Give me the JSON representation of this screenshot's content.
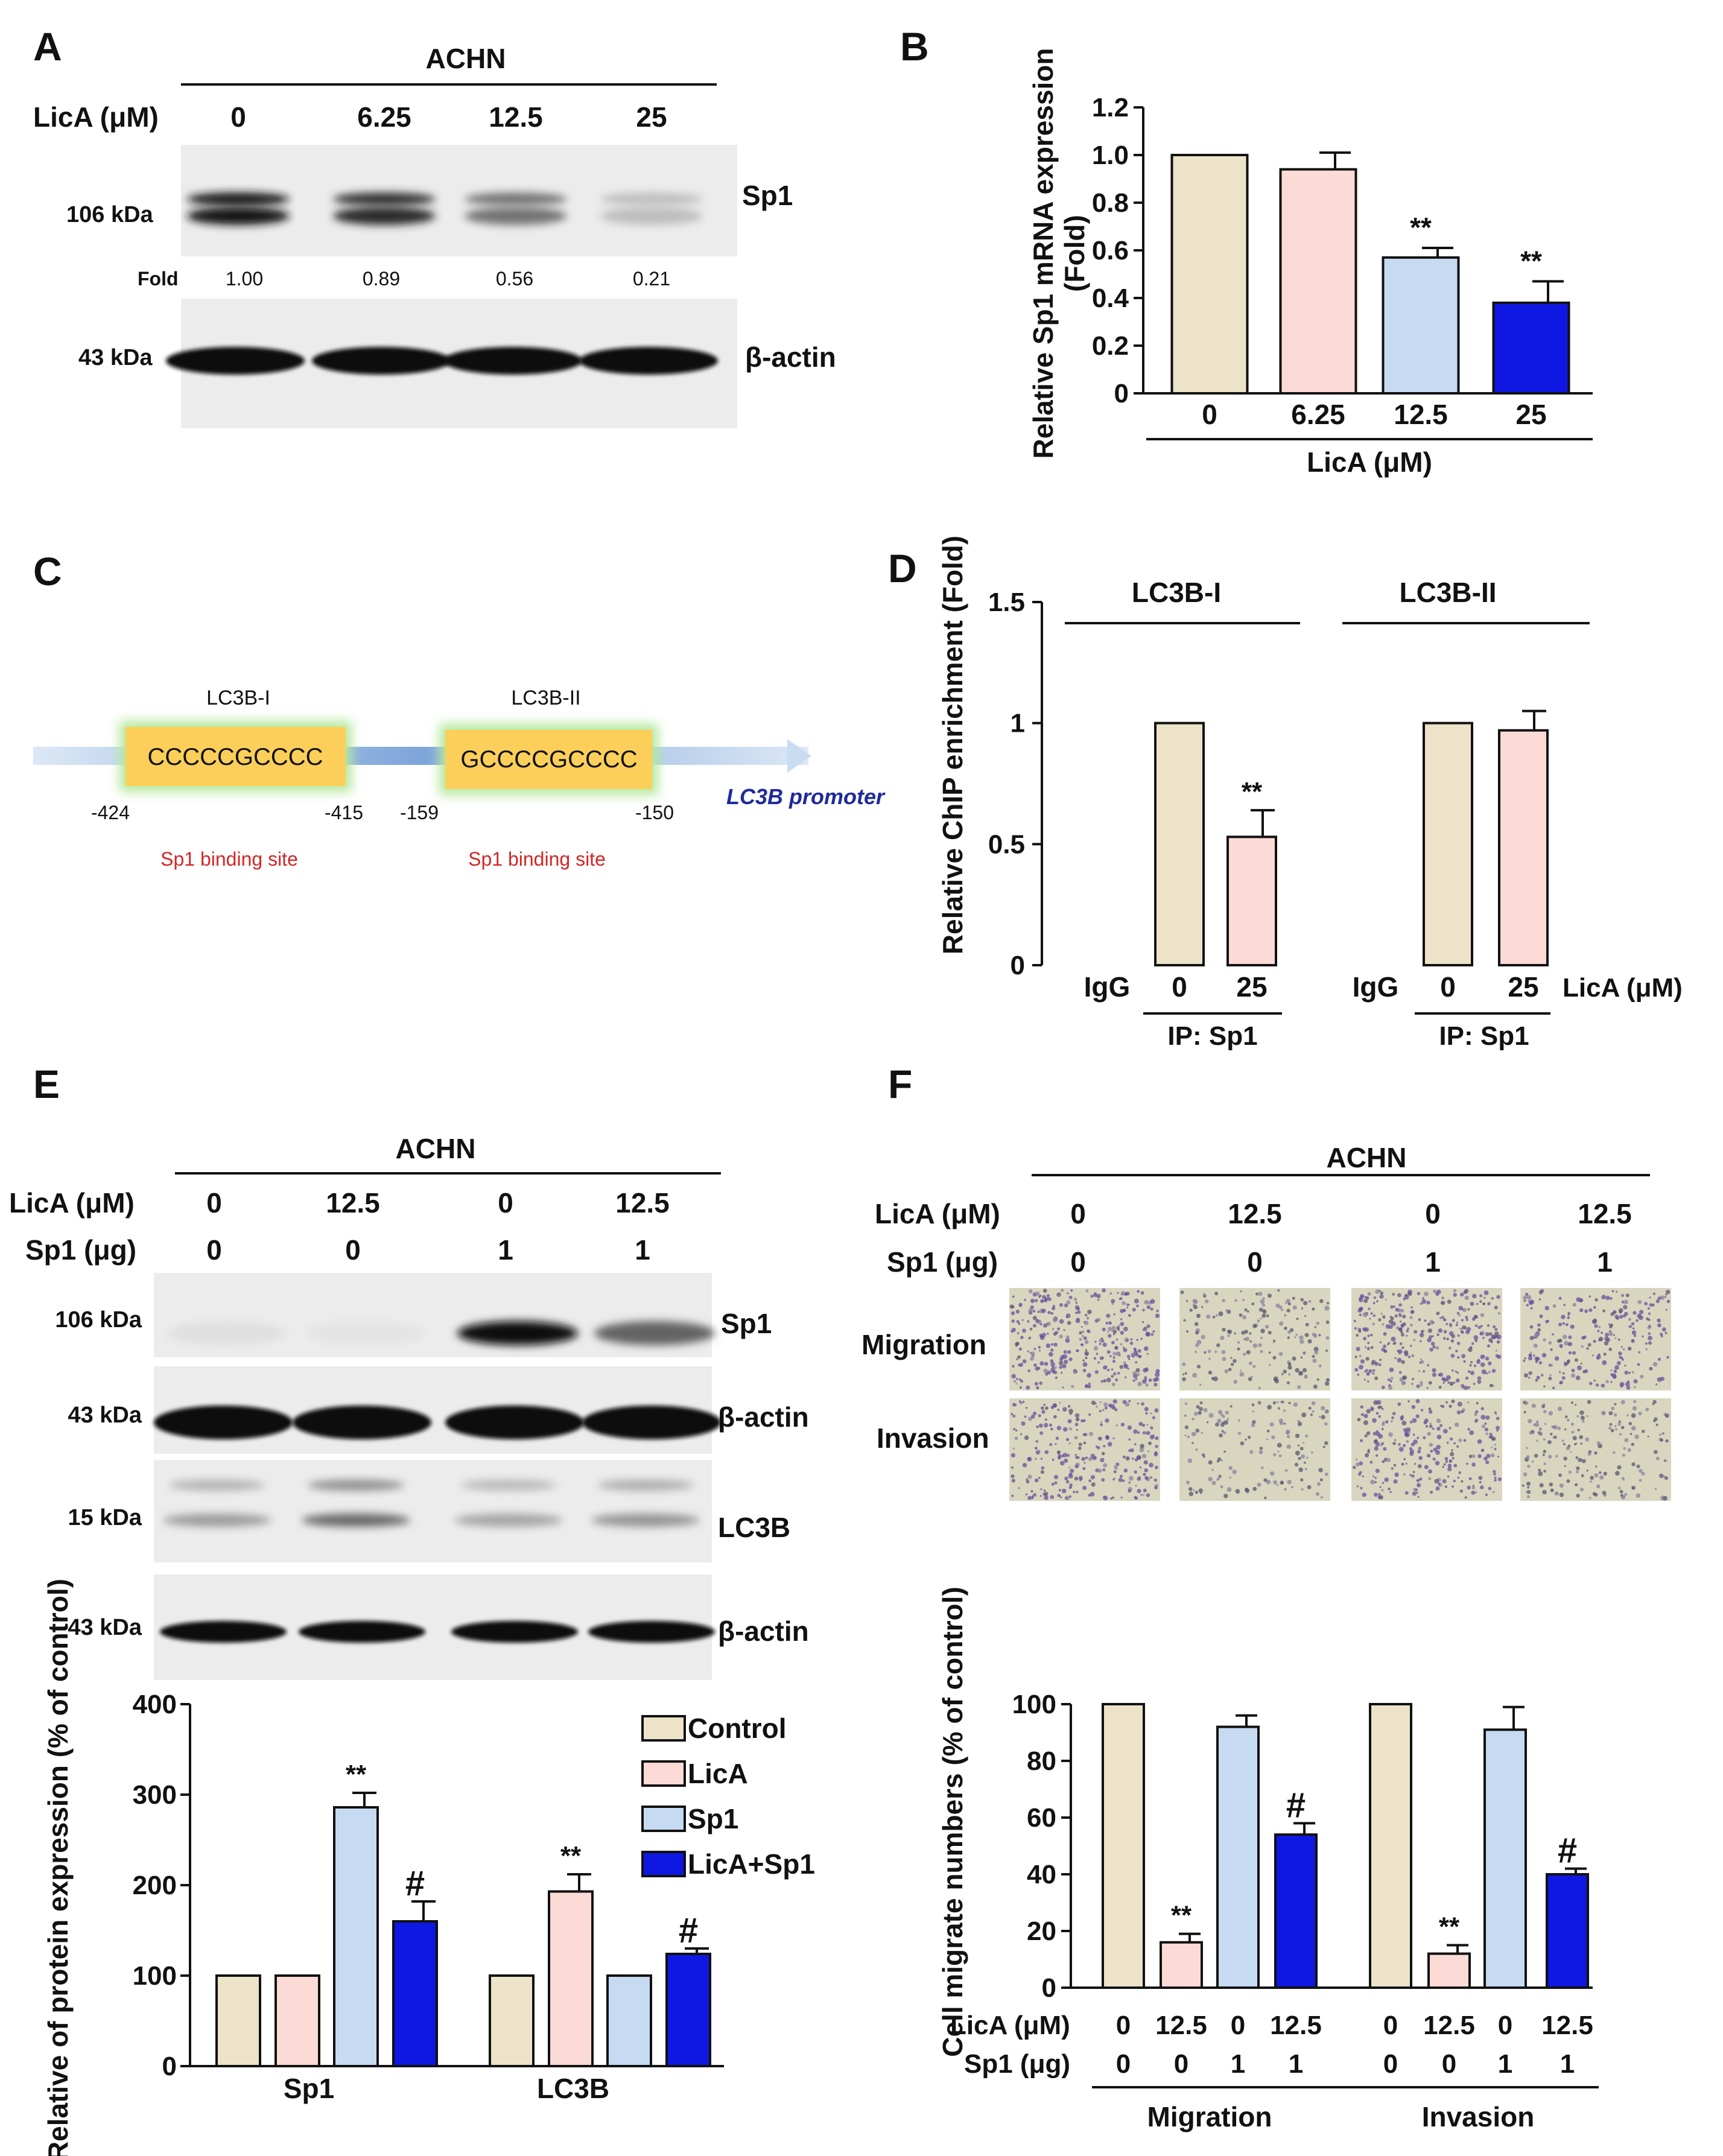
{
  "colors": {
    "control": "#ece3c9",
    "licA": "#fcdad6",
    "sp1": "#c6daf2",
    "licA_sp1": "#0f18e2",
    "outline": "#111111",
    "promoter_box": "#fbcf5a",
    "promoter_glow": "#b6e89e",
    "promoter_line": "#a8c4e8",
    "binding_label": "#d22626",
    "promoter_label": "#1f2a9c"
  },
  "panel_letters": [
    "A",
    "B",
    "C",
    "D",
    "E",
    "F"
  ],
  "panelA": {
    "cell_line": "ACHN",
    "treatment_label": "LicA (μM)",
    "lanes": [
      "0",
      "6.25",
      "12.5",
      "25"
    ],
    "bands": [
      {
        "kda": "106 kDa",
        "protein": "Sp1",
        "intensity": [
          1.0,
          0.89,
          0.56,
          0.21
        ]
      },
      {
        "kda": "43 kDa",
        "protein": "β-actin",
        "intensity": [
          1,
          1,
          1,
          1
        ]
      }
    ],
    "fold_label": "Fold",
    "fold_values": [
      "1.00",
      "0.89",
      "0.56",
      "0.21"
    ]
  },
  "panelC": {
    "sites": [
      {
        "name": "LC3B-I",
        "sequence": "CCCCCGCCCC",
        "start": "-424",
        "end": "-415",
        "note": "Sp1 binding site"
      },
      {
        "name": "LC3B-II",
        "sequence": "GCCCCGCCCC",
        "start": "-159",
        "end": "-150",
        "note": "Sp1 binding site"
      }
    ],
    "promoter_label": "LC3B promoter"
  },
  "panelE": {
    "cell_line": "ACHN",
    "treatments": [
      {
        "label": "LicA (μM)",
        "values": [
          "0",
          "12.5",
          "0",
          "12.5"
        ]
      },
      {
        "label": "Sp1 (μg)",
        "values": [
          "0",
          "0",
          "1",
          "1"
        ]
      }
    ],
    "blots": [
      {
        "kda": "106 kDa",
        "protein": "Sp1",
        "intensity": [
          0.05,
          0.03,
          1.0,
          0.6
        ]
      },
      {
        "kda": "43 kDa",
        "protein": "β-actin",
        "intensity": [
          1,
          1,
          1,
          1
        ]
      },
      {
        "kda": "15 kDa",
        "protein": "LC3B",
        "intensity": [
          0.45,
          0.75,
          0.4,
          0.5
        ]
      },
      {
        "kda": "43 kDa",
        "protein": "β-actin",
        "intensity": [
          1,
          1,
          1,
          1
        ]
      }
    ]
  },
  "panelF": {
    "cell_line": "ACHN",
    "treatments": [
      {
        "label": "LicA (μM)",
        "values": [
          "0",
          "12.5",
          "0",
          "12.5"
        ]
      },
      {
        "label": "Sp1 (μg)",
        "values": [
          "0",
          "0",
          "1",
          "1"
        ]
      }
    ],
    "rows": [
      "Migration",
      "Invasion"
    ],
    "cell_density": [
      [
        1.0,
        0.35,
        0.95,
        0.6
      ],
      [
        0.7,
        0.25,
        0.65,
        0.4
      ]
    ]
  },
  "chart_data": [
    {
      "panel": "B",
      "type": "bar",
      "categories": [
        "0",
        "6.25",
        "12.5",
        "25"
      ],
      "values": [
        1.0,
        0.94,
        0.57,
        0.38
      ],
      "errors": [
        0,
        0.07,
        0.04,
        0.09
      ],
      "sig": [
        "",
        "",
        "**",
        "**"
      ],
      "colors": [
        "#ece3c9",
        "#fcdad6",
        "#c6daf2",
        "#0f18e2"
      ],
      "ylabel": "Relative Sp1 mRNA expression (Fold)",
      "xlabel": "LicA (μM)",
      "ylim": [
        0,
        1.2
      ],
      "yticks": [
        "0",
        "0.2",
        "0.4",
        "0.6",
        "0.8",
        "1.0",
        "1.2"
      ]
    },
    {
      "panel": "D",
      "type": "bar",
      "groups": [
        {
          "name": "LC3B-I",
          "categories": [
            "IgG",
            "0",
            "25"
          ],
          "values": [
            0,
            1.0,
            0.53
          ],
          "errors": [
            0,
            0,
            0.11
          ],
          "sig": [
            "",
            "",
            "**"
          ]
        },
        {
          "name": "LC3B-II",
          "categories": [
            "IgG",
            "0",
            "25"
          ],
          "values": [
            0,
            1.0,
            0.97
          ],
          "errors": [
            0,
            0,
            0.08
          ],
          "sig": [
            "",
            "",
            ""
          ]
        }
      ],
      "bar_colors": [
        "#ece3c9",
        "#ece3c9",
        "#fcdad6"
      ],
      "ip_label": "IP: Sp1",
      "treatment_label": "LicA (μM)",
      "ylabel": "Relative ChIP enrichment (Fold)",
      "ylim": [
        0,
        1.5
      ],
      "yticks": [
        "0",
        "0.5",
        "1",
        "1.5"
      ]
    },
    {
      "panel": "E",
      "type": "bar",
      "categories": [
        "Sp1",
        "LC3B"
      ],
      "series": [
        {
          "name": "Control",
          "values": [
            100,
            100
          ],
          "errors": [
            0,
            0
          ],
          "sig": [
            "",
            ""
          ]
        },
        {
          "name": "LicA",
          "values": [
            100,
            193
          ],
          "errors": [
            0,
            19
          ],
          "sig": [
            "",
            "**"
          ]
        },
        {
          "name": "Sp1",
          "values": [
            286,
            100
          ],
          "errors": [
            16,
            0
          ],
          "sig": [
            "**",
            ""
          ]
        },
        {
          "name": "LicA+Sp1",
          "values": [
            160,
            124
          ],
          "errors": [
            22,
            6
          ],
          "sig": [
            "#",
            "#"
          ]
        }
      ],
      "ylabel": "Relative of protein expression (% of control)",
      "ylim": [
        0,
        400
      ],
      "yticks": [
        "0",
        "100",
        "200",
        "300",
        "400"
      ],
      "legend": "top-right"
    },
    {
      "panel": "F",
      "type": "bar",
      "groups": [
        {
          "name": "Migration",
          "values": [
            100,
            16,
            92,
            54
          ],
          "errors": [
            0,
            3,
            4,
            4
          ],
          "sig": [
            "",
            "**",
            "",
            "#"
          ]
        },
        {
          "name": "Invasion",
          "values": [
            100,
            12,
            91,
            40
          ],
          "errors": [
            0,
            3,
            8,
            2
          ],
          "sig": [
            "",
            "**",
            "",
            "#"
          ]
        }
      ],
      "treatments": [
        {
          "label": "LicA (μM)",
          "values": [
            "0",
            "12.5",
            "0",
            "12.5"
          ]
        },
        {
          "label": "Sp1 (μg)",
          "values": [
            "0",
            "0",
            "1",
            "1"
          ]
        }
      ],
      "ylabel": "Cell migrate numbers (% of control)",
      "ylim": [
        0,
        100
      ],
      "yticks": [
        "0",
        "20",
        "40",
        "60",
        "80",
        "100"
      ]
    }
  ]
}
